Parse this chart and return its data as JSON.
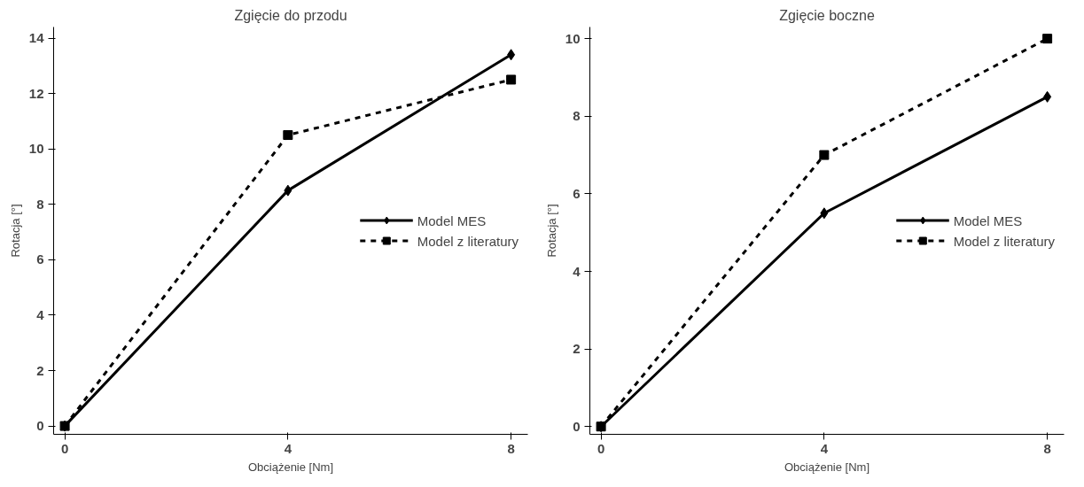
{
  "chart_data": [
    {
      "type": "line",
      "title": "Zgięcie do przodu",
      "xlabel": "Obciążenie [Nm]",
      "ylabel": "Rotacja [°]",
      "x": [
        0,
        4,
        8
      ],
      "xlim": [
        -0.2,
        8.3
      ],
      "xticks": [
        0,
        4,
        8
      ],
      "ylim": [
        -0.3,
        14.4
      ],
      "yticks": [
        0,
        2,
        4,
        6,
        8,
        10,
        12,
        14
      ],
      "grid": false,
      "legend": "right",
      "series": [
        {
          "name": "Model MES",
          "color": "#000000",
          "values": [
            0,
            8.5,
            13.4
          ],
          "marker": "diamond",
          "line_style": "solid"
        },
        {
          "name": "Model z literatury",
          "color": "#000000",
          "values": [
            0,
            10.5,
            12.5
          ],
          "marker": "square",
          "line_style": "dashed"
        }
      ]
    },
    {
      "type": "line",
      "title": "Zgięcie boczne",
      "xlabel": "Obciążenie [Nm]",
      "ylabel": "Rotacja [°]",
      "x": [
        0,
        4,
        8
      ],
      "xlim": [
        -0.2,
        8.3
      ],
      "xticks": [
        0,
        4,
        8
      ],
      "ylim": [
        -0.2,
        10.3
      ],
      "yticks": [
        0,
        2,
        4,
        6,
        8,
        10
      ],
      "grid": false,
      "legend": "right",
      "series": [
        {
          "name": "Model MES",
          "color": "#000000",
          "values": [
            0,
            5.5,
            8.5
          ],
          "marker": "diamond",
          "line_style": "solid"
        },
        {
          "name": "Model z literatury",
          "color": "#000000",
          "values": [
            0,
            7,
            10
          ],
          "marker": "square",
          "line_style": "dashed"
        }
      ]
    }
  ]
}
